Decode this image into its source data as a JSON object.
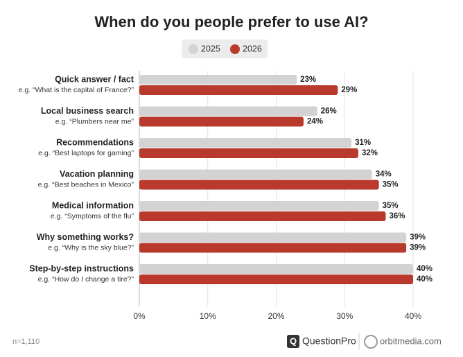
{
  "chart_data": {
    "type": "bar",
    "orientation": "horizontal",
    "title": "When do you people prefer to use AI?",
    "categories": [
      "Quick answer / fact",
      "Local business search",
      "Recommendations",
      "Vacation planning",
      "Medical information",
      "Why something works?",
      "Step-by-step instructions"
    ],
    "category_examples": [
      "e.g. “What is the capital of France?”",
      "e.g. “Plumbers near me”",
      "e.g. “Best laptops for gaming”",
      "e.g. “Best beaches in Mexico”",
      "e.g. “Symptoms of the flu”",
      "e.g. “Why is the sky blue?”",
      "e.g. “How do I change a tire?”"
    ],
    "series": [
      {
        "name": "2025",
        "color": "#d3d3d3",
        "values": [
          23,
          26,
          31,
          34,
          35,
          39,
          40
        ],
        "value_labels": [
          "23%",
          "26%",
          "31%",
          "34%",
          "35%",
          "39%",
          "40%"
        ]
      },
      {
        "name": "2026",
        "color": "#b93a2c",
        "values": [
          29,
          24,
          32,
          35,
          36,
          39,
          40
        ],
        "value_labels": [
          "29%",
          "24%",
          "32%",
          "35%",
          "36%",
          "39%",
          "40%"
        ]
      }
    ],
    "xlim": [
      0,
      40
    ],
    "xticks": [
      {
        "value": 0,
        "label": "0%"
      },
      {
        "value": 10,
        "label": "10%"
      },
      {
        "value": 20,
        "label": "20%"
      },
      {
        "value": 30,
        "label": "30%"
      },
      {
        "value": 40,
        "label": "40%"
      }
    ],
    "grid": true,
    "footnote": "n=1,110",
    "logos": [
      "QuestionPro",
      "orbitmedia.com"
    ]
  }
}
